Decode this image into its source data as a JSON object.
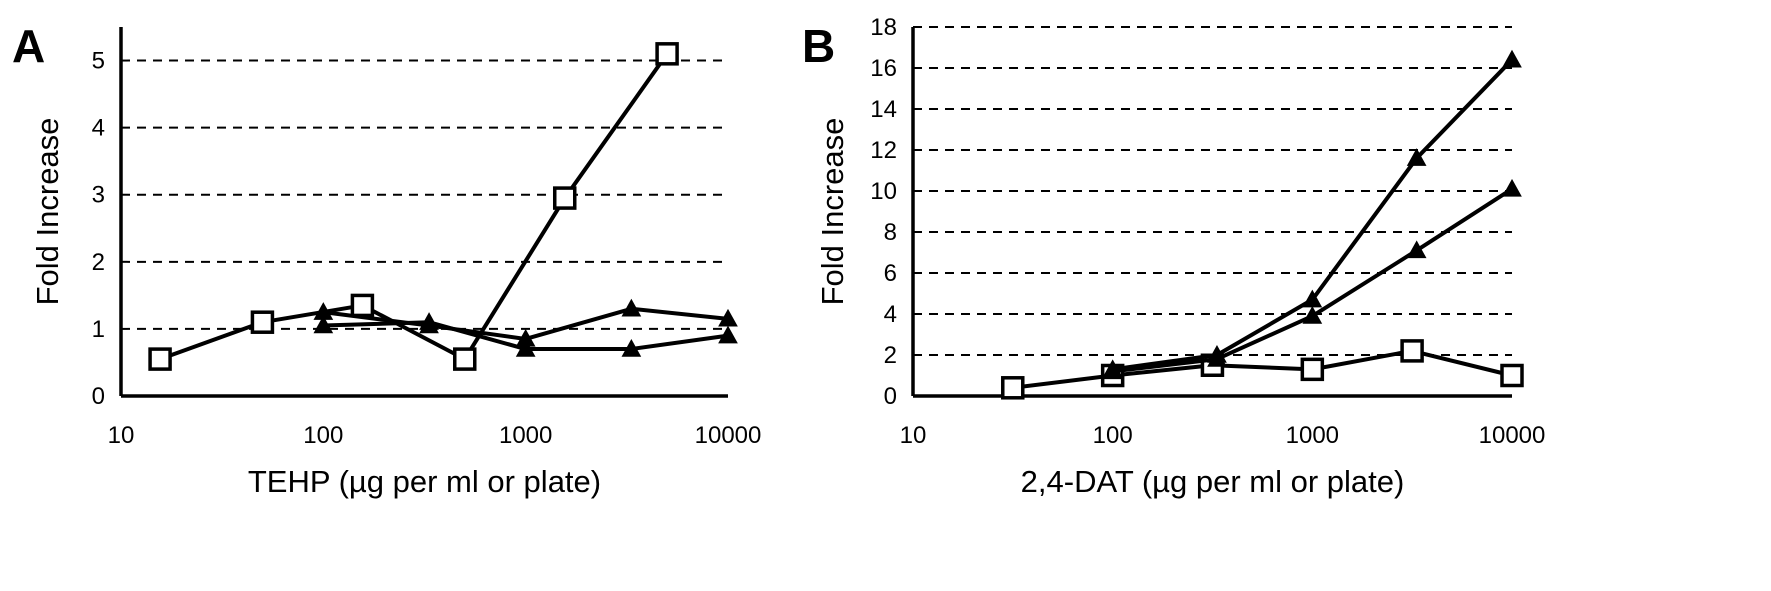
{
  "chart_data": [
    {
      "panel_label": "A",
      "type": "line",
      "xlabel": "TEHP (µg per ml or plate)",
      "ylabel": "Fold Increase",
      "x_scale": "log",
      "xlim": [
        10,
        10000
      ],
      "x_ticks": [
        10,
        100,
        1000,
        10000
      ],
      "x_tick_labels": [
        "10",
        "100",
        "1000",
        "10000"
      ],
      "ylim": [
        0,
        5.5
      ],
      "y_ticks": [
        0,
        1,
        2,
        3,
        4,
        5
      ],
      "y_tick_labels": [
        "0",
        "1",
        "2",
        "3",
        "4",
        "5"
      ],
      "grid": "horizontal dashed",
      "series": [
        {
          "marker": "open-square",
          "x": [
            15.6,
            50,
            156,
            500,
            1560,
            5000
          ],
          "y": [
            0.55,
            1.1,
            1.35,
            0.55,
            2.95,
            5.1
          ]
        },
        {
          "marker": "filled-triangle",
          "x": [
            100,
            333,
            1000,
            3330,
            10000
          ],
          "y": [
            1.25,
            1.05,
            0.85,
            1.3,
            1.15
          ]
        },
        {
          "marker": "filled-triangle",
          "x": [
            100,
            333,
            1000,
            3330,
            10000
          ],
          "y": [
            1.05,
            1.1,
            0.7,
            0.7,
            0.9
          ]
        }
      ]
    },
    {
      "panel_label": "B",
      "type": "line",
      "xlabel": "2,4-DAT (µg per ml or plate)",
      "ylabel": "Fold Increase",
      "x_scale": "log",
      "xlim": [
        10,
        10000
      ],
      "x_ticks": [
        10,
        100,
        1000,
        10000
      ],
      "x_tick_labels": [
        "10",
        "100",
        "1000",
        "10000"
      ],
      "ylim": [
        0,
        18
      ],
      "y_ticks": [
        0,
        2,
        4,
        6,
        8,
        10,
        12,
        14,
        16,
        18
      ],
      "y_tick_labels": [
        "0",
        "2",
        "4",
        "6",
        "8",
        "10",
        "12",
        "14",
        "16",
        "18"
      ],
      "grid": "horizontal dashed",
      "series": [
        {
          "marker": "open-square",
          "x": [
            31.6,
            100,
            316,
            1000,
            3160,
            10000
          ],
          "y": [
            0.4,
            1.0,
            1.5,
            1.3,
            2.2,
            1.0
          ]
        },
        {
          "marker": "filled-triangle",
          "x": [
            100,
            333,
            1000,
            3330,
            10000
          ],
          "y": [
            1.3,
            2.0,
            4.7,
            11.6,
            16.4
          ]
        },
        {
          "marker": "filled-triangle",
          "x": [
            100,
            333,
            1000,
            3330,
            10000
          ],
          "y": [
            1.2,
            1.8,
            3.9,
            7.1,
            10.1
          ]
        }
      ]
    }
  ]
}
